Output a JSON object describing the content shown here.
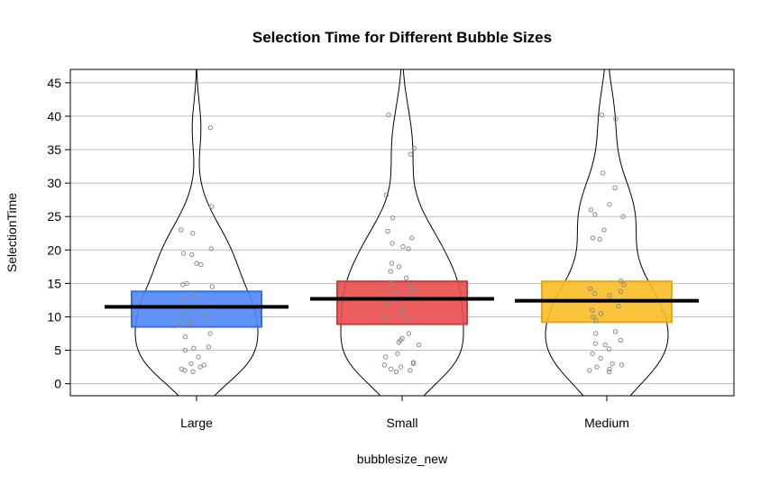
{
  "chart_data": {
    "type": "pirate",
    "title": "Selection Time for Different Bubble Sizes",
    "xlabel": "bubblesize_new",
    "ylabel": "SelectionTime",
    "ylim": [
      -1.8,
      47
    ],
    "yticks": [
      0,
      5,
      10,
      15,
      20,
      25,
      30,
      35,
      40,
      45
    ],
    "grid": true,
    "colors": {
      "grid": "#bdbdbd",
      "points": "#8a8a8a",
      "mean_line": "#000000"
    },
    "groups": [
      {
        "name": "Large",
        "mean": 11.5,
        "hdi": [
          8.5,
          13.8
        ],
        "color": "#4f86f7",
        "border_color": "#3a6fe0",
        "points": [
          38.3,
          26.5,
          23.0,
          22.5,
          20.2,
          19.5,
          19.3,
          18.0,
          17.8,
          15.0,
          14.8,
          14.5,
          13.0,
          12.5,
          11.8,
          11.0,
          10.5,
          10.0,
          9.3,
          9.0,
          8.8,
          7.5,
          7.0,
          5.5,
          5.3,
          5.0,
          4.0,
          3.0,
          2.8,
          2.5,
          2.2,
          2.0,
          1.8
        ]
      },
      {
        "name": "Small",
        "mean": 12.7,
        "hdi": [
          8.9,
          15.3
        ],
        "color": "#e84c4c",
        "border_color": "#d13a3a",
        "points": [
          40.2,
          35.2,
          34.3,
          28.2,
          24.8,
          22.8,
          21.8,
          21.0,
          20.5,
          20.2,
          18.0,
          17.5,
          16.8,
          15.8,
          15.0,
          14.5,
          14.0,
          13.5,
          13.2,
          12.5,
          11.8,
          11.0,
          10.5,
          9.8,
          9.5,
          7.5,
          6.8,
          6.5,
          6.2,
          5.8,
          4.5,
          4.0,
          3.2,
          3.0,
          2.8,
          2.5,
          2.2,
          2.0,
          1.8
        ]
      },
      {
        "name": "Medium",
        "mean": 12.4,
        "hdi": [
          9.2,
          15.3
        ],
        "color": "#f9bd26",
        "border_color": "#e6a817",
        "points": [
          40.2,
          39.6,
          31.5,
          29.3,
          26.8,
          26.0,
          25.3,
          25.0,
          23.0,
          21.8,
          21.6,
          15.4,
          14.8,
          14.2,
          13.8,
          13.5,
          13.2,
          11.6,
          11.0,
          10.5,
          10.0,
          9.4,
          7.8,
          7.5,
          6.5,
          6.0,
          5.8,
          5.2,
          4.5,
          3.8,
          3.0,
          2.8,
          2.5,
          2.2,
          2.0,
          1.8
        ]
      }
    ]
  }
}
